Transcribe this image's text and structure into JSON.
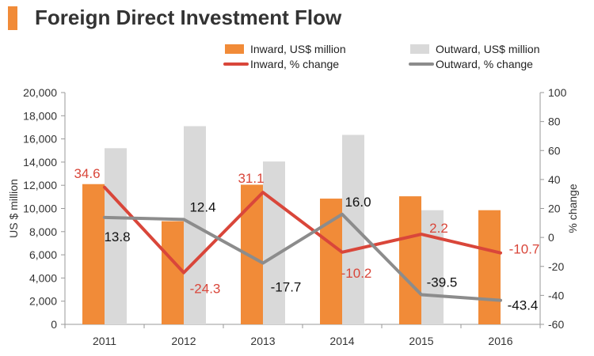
{
  "title": "Foreign Direct Investment Flow",
  "chart_data": {
    "type": "bar+line",
    "categories": [
      "2011",
      "2012",
      "2013",
      "2014",
      "2015",
      "2016"
    ],
    "bar_series": [
      {
        "name": "Inward, US$ million",
        "color": "#f18b38",
        "values": [
          12100,
          8900,
          12050,
          10850,
          11050,
          9850
        ]
      },
      {
        "name": "Outward, US$ million",
        "color": "#d9d9d9",
        "values": [
          15200,
          17100,
          14050,
          16350,
          9850,
          0
        ]
      }
    ],
    "line_series": [
      {
        "name": "Inward, % change",
        "color": "#d9463a",
        "values": [
          34.6,
          -24.3,
          31.1,
          -10.2,
          2.2,
          -10.7
        ],
        "labels": [
          "34.6",
          "-24.3",
          "31.1",
          "-10.2",
          "2.2",
          "-10.7"
        ]
      },
      {
        "name": "Outward, % change",
        "color": "#8c8c8c",
        "values": [
          13.8,
          12.4,
          -17.7,
          16.0,
          -39.5,
          -43.4
        ],
        "labels": [
          "13.8",
          "12.4",
          "-17.7",
          "16.0",
          "-39.5",
          "-43.4"
        ]
      }
    ],
    "ylabel_left": "US $ million",
    "ylabel_right": "% change",
    "ylim_left": [
      0,
      20000
    ],
    "ylim_right": [
      -60,
      100
    ],
    "yticks_left": [
      "0",
      "2,000",
      "4,000",
      "6,000",
      "8,000",
      "10,000",
      "12,000",
      "14,000",
      "16,000",
      "18,000",
      "20,000"
    ],
    "yticks_right": [
      "-60",
      "-40",
      "-20",
      "0",
      "20",
      "40",
      "60",
      "80",
      "100"
    ],
    "legend_position": "top-right"
  }
}
